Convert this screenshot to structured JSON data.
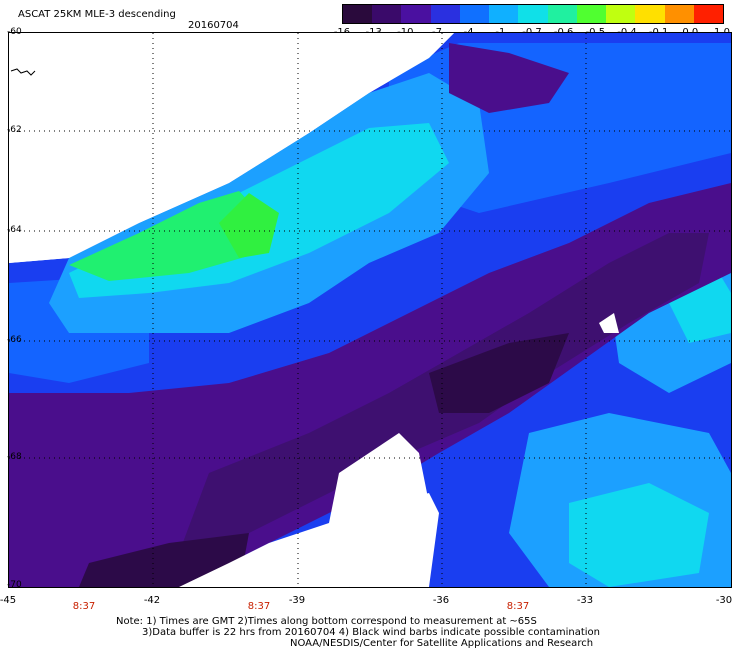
{
  "header": {
    "title": "ASCAT 25KM MLE-3 descending",
    "date": "20160704"
  },
  "colorbar": {
    "labels": [
      "-16",
      "-13",
      "-10",
      "-7",
      "-4",
      "-1",
      "-0.7",
      "-0.6",
      "-0.5",
      "-0.4",
      "-0.1",
      "0.0",
      "1.0"
    ],
    "colors": [
      "#2a0a3c",
      "#3a0a6a",
      "#4a10a0",
      "#2a30e0",
      "#1070ff",
      "#10b0ff",
      "#10e0e8",
      "#20f0a0",
      "#50ff30",
      "#c0ff10",
      "#ffe000",
      "#ff9000",
      "#ff2000"
    ]
  },
  "map": {
    "lat_labels": [
      "-60",
      "-62",
      "-64",
      "-66",
      "-68",
      "-70"
    ],
    "lon_labels": [
      "-45",
      "-42",
      "-39",
      "-36",
      "-33",
      "-30"
    ],
    "time_labels": [
      "8:37",
      "8:37",
      "8:37"
    ],
    "colors": {
      "dark": "#2c0a48",
      "purple": "#4a0e8c",
      "violet": "#3e1070",
      "blue": "#1a3ef0",
      "midblue": "#1464ff",
      "lightblue": "#1ca0ff",
      "cyan": "#10d8f0",
      "green": "#20f070",
      "white": "#ffffff"
    }
  },
  "notes": {
    "line1": "Note: 1) Times are GMT 2)Times along bottom correspond to measurement at ~65S",
    "line2": "3)Data buffer is 22 hrs from 20160704 4) Black wind barbs indicate possible contamination",
    "line3": "NOAA/NESDIS/Center for Satellite Applications and Research"
  }
}
